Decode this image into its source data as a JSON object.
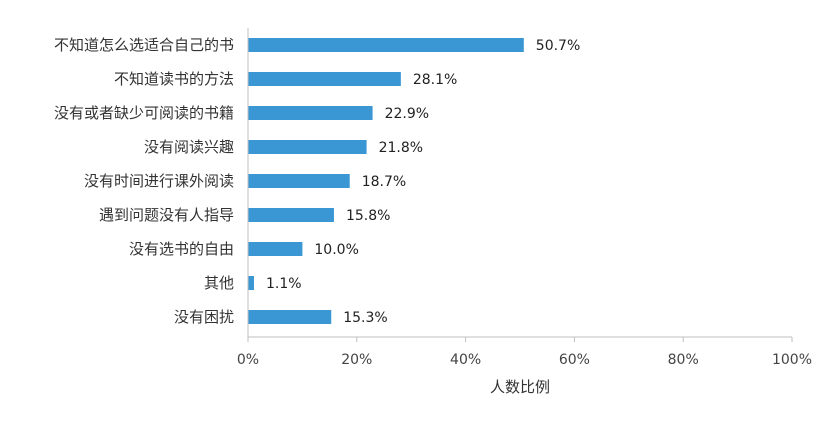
{
  "chart_data": {
    "type": "bar",
    "orientation": "horizontal",
    "categories": [
      "不知道怎么选适合自己的书",
      "不知道读书的方法",
      "没有或者缺少可阅读的书籍",
      "没有阅读兴趣",
      "没有时间进行课外阅读",
      "遇到问题没有人指导",
      "没有选书的自由",
      "其他",
      "没有困扰"
    ],
    "values": [
      50.7,
      28.1,
      22.9,
      21.8,
      18.7,
      15.8,
      10.0,
      1.1,
      15.3
    ],
    "value_labels": [
      "50.7%",
      "28.1%",
      "22.9%",
      "21.8%",
      "18.7%",
      "15.8%",
      "10.0%",
      "1.1%",
      "15.3%"
    ],
    "title": "",
    "xlabel": "人数比例",
    "ylabel": "",
    "xlim": [
      0,
      100
    ],
    "x_ticks": [
      0,
      20,
      40,
      60,
      80,
      100
    ],
    "x_tick_labels": [
      "0%",
      "20%",
      "40%",
      "60%",
      "80%",
      "100%"
    ],
    "grid": false,
    "legend": "none",
    "bar_color": "#3b97d3"
  }
}
